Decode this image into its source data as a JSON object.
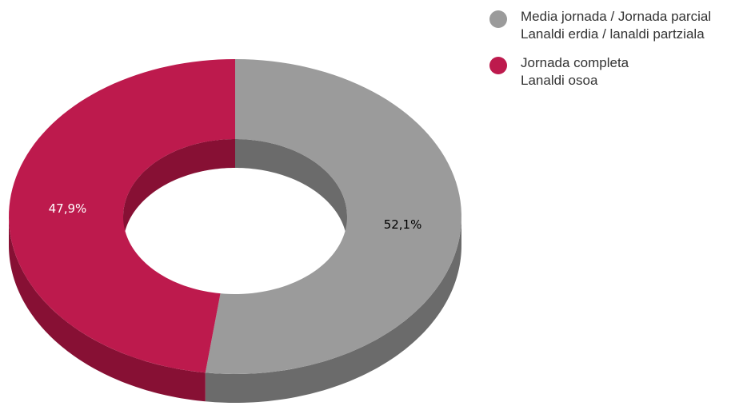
{
  "chart_data": {
    "type": "pie",
    "variant": "donut-3d",
    "slices": [
      {
        "label": [
          "Media jornada / Jornada parcial",
          "Lanaldi erdia / lanaldi partziala"
        ],
        "value": 52.1,
        "value_label": "52,1%",
        "color": "#9b9b9b",
        "side_color": "#6b6b6b",
        "label_color": "#000000"
      },
      {
        "label": [
          "Jornada completa",
          "Lanaldi osoa"
        ],
        "value": 47.9,
        "value_label": "47,9%",
        "color": "#bd1a4d",
        "side_color": "#871034",
        "label_color": "#ffffff"
      }
    ],
    "legend_position": "top-right"
  }
}
